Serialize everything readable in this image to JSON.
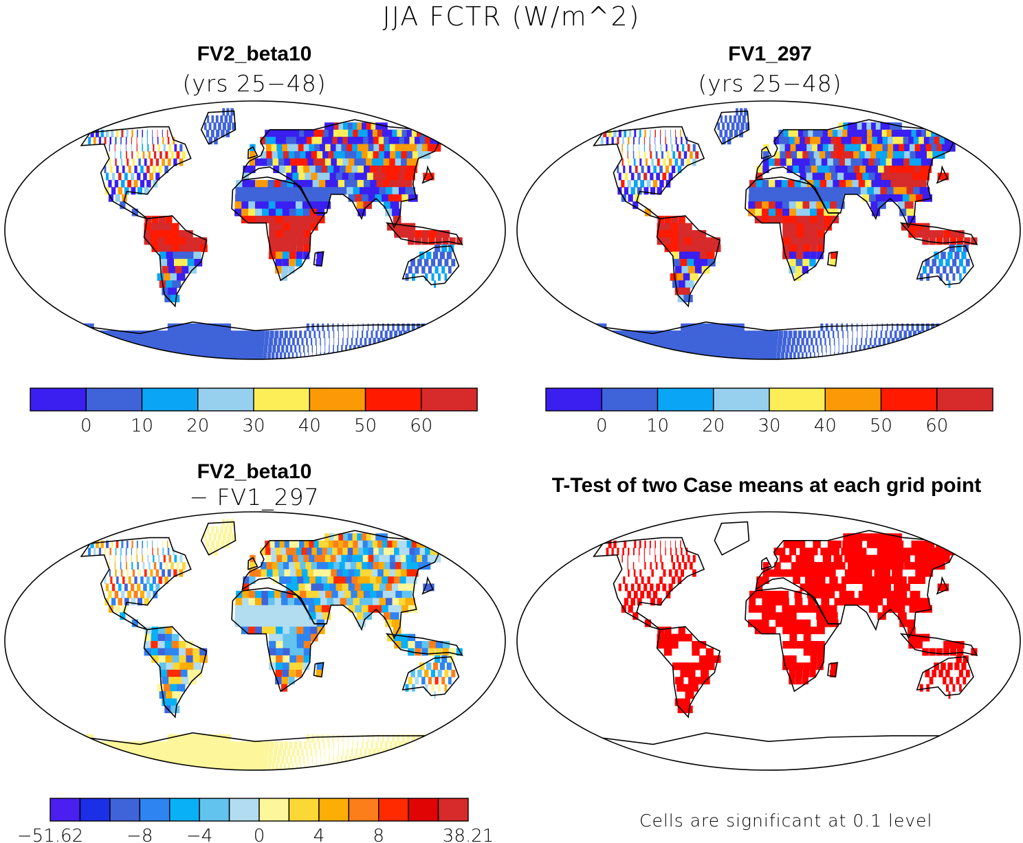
{
  "figure": {
    "title": "JJA FCTR (W/m^2)"
  },
  "panels": [
    {
      "id": "case1",
      "title": "FV2_beta10",
      "subtitle": "(yrs 25−48)",
      "colorbar": {
        "colors": [
          "#3a1ff0",
          "#3f63d9",
          "#0aa5f5",
          "#96d0ee",
          "#fdee58",
          "#fb9a06",
          "#ff1a00",
          "#d72a2a"
        ],
        "tick_labels": [
          "0",
          "10",
          "20",
          "30",
          "40",
          "50",
          "60"
        ]
      }
    },
    {
      "id": "case2",
      "title": "FV1_297",
      "subtitle": "(yrs 25−48)",
      "colorbar": {
        "colors": [
          "#3a1ff0",
          "#3f63d9",
          "#0aa5f5",
          "#96d0ee",
          "#fdee58",
          "#fb9a06",
          "#ff1a00",
          "#d72a2a"
        ],
        "tick_labels": [
          "0",
          "10",
          "20",
          "30",
          "40",
          "50",
          "60"
        ]
      }
    },
    {
      "id": "diff",
      "title": "FV2_beta10",
      "subtitle": "− FV1_297",
      "colorbar": {
        "colors": [
          "#4a1ff0",
          "#1a2fe6",
          "#3f63d9",
          "#2e84f0",
          "#09b0f6",
          "#62c3ef",
          "#b2dcef",
          "#fdf69a",
          "#fcd836",
          "#fcad06",
          "#fc7e1a",
          "#ff2a00",
          "#e10404",
          "#d72a2a"
        ],
        "tick_labels": [
          "−51.62",
          "−8",
          "−4",
          "0",
          "4",
          "8",
          "38.21"
        ]
      }
    },
    {
      "id": "ttest",
      "title": "T-Test of two Case means at each grid point",
      "note": "Cells are significant at 0.1 level",
      "significant_color": "#ff0000"
    }
  ]
}
